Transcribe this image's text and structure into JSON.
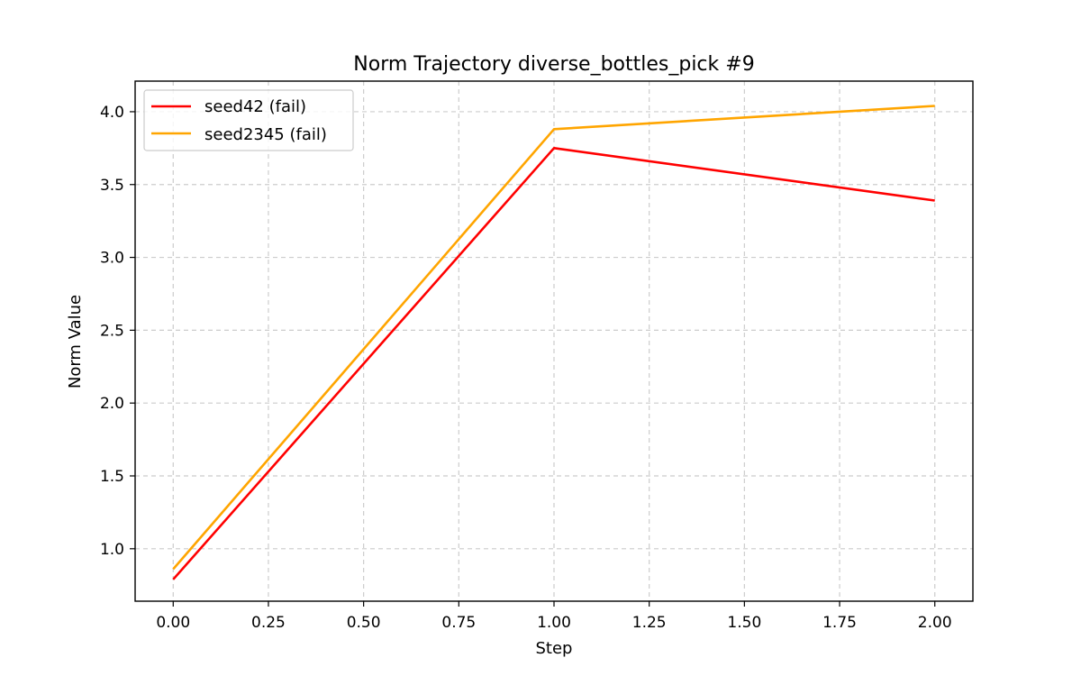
{
  "chart_data": {
    "type": "line",
    "title": "Norm Trajectory diverse_bottles_pick #9",
    "xlabel": "Step",
    "ylabel": "Norm Value",
    "x": [
      0,
      1,
      2
    ],
    "xlim": [
      -0.1,
      2.1
    ],
    "ylim": [
      0.64,
      4.21
    ],
    "xticks": [
      0.0,
      0.25,
      0.5,
      0.75,
      1.0,
      1.25,
      1.5,
      1.75,
      2.0
    ],
    "xtick_labels": [
      "0.00",
      "0.25",
      "0.50",
      "0.75",
      "1.00",
      "1.25",
      "1.50",
      "1.75",
      "2.00"
    ],
    "yticks": [
      1.0,
      1.5,
      2.0,
      2.5,
      3.0,
      3.5,
      4.0
    ],
    "ytick_labels": [
      "1.0",
      "1.5",
      "2.0",
      "2.5",
      "3.0",
      "3.5",
      "4.0"
    ],
    "grid": true,
    "legend_position": "upper-left",
    "series": [
      {
        "name": "seed42 (fail)",
        "color": "#ff0000",
        "values": [
          0.79,
          3.75,
          3.39
        ]
      },
      {
        "name": "seed2345 (fail)",
        "color": "#ffa500",
        "values": [
          0.86,
          3.88,
          4.04
        ]
      }
    ]
  }
}
